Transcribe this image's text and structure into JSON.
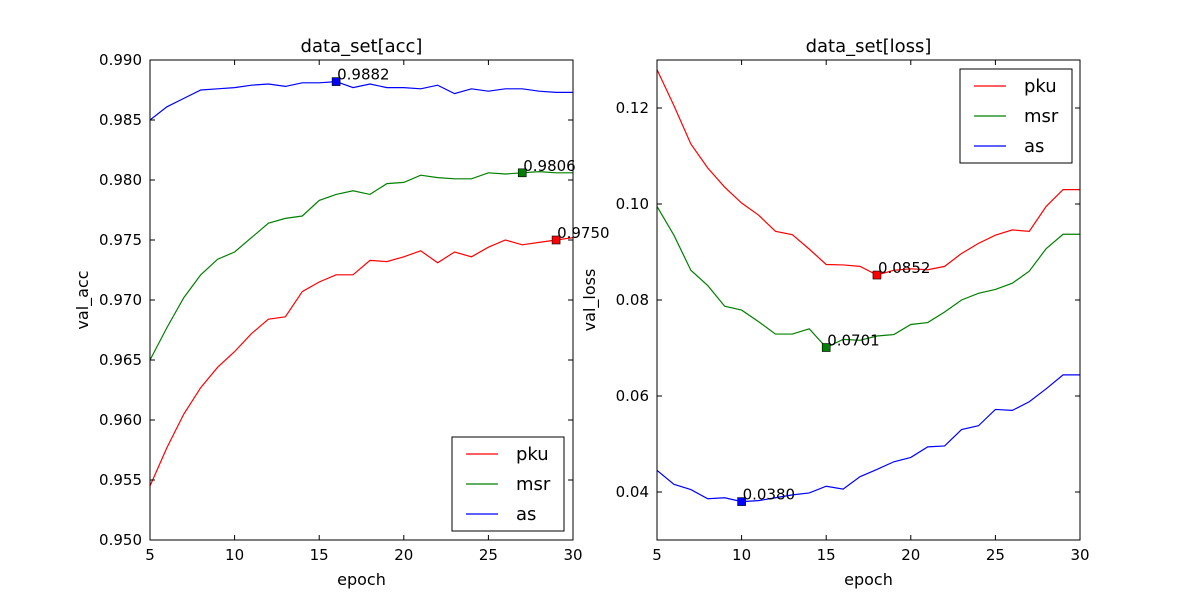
{
  "chart_data": [
    {
      "type": "line",
      "title": "data_set[acc]",
      "xlabel": "epoch",
      "ylabel": "val_acc",
      "xlim": [
        5,
        30
      ],
      "ylim": [
        0.95,
        0.99
      ],
      "xticks": [
        "5",
        "10",
        "15",
        "20",
        "25",
        "30"
      ],
      "yticks": [
        "0.950",
        "0.955",
        "0.960",
        "0.965",
        "0.970",
        "0.975",
        "0.980",
        "0.985",
        "0.990"
      ],
      "legend": "lower-right",
      "x": [
        5,
        6,
        7,
        8,
        9,
        10,
        11,
        12,
        13,
        14,
        15,
        16,
        17,
        18,
        19,
        20,
        21,
        22,
        23,
        24,
        25,
        26,
        27,
        28,
        29,
        30
      ],
      "series": [
        {
          "name": "pku",
          "color": "#ff0000",
          "values": [
            0.9545,
            0.9577,
            0.9605,
            0.9627,
            0.9644,
            0.9657,
            0.9672,
            0.9684,
            0.9686,
            0.9707,
            0.9715,
            0.9721,
            0.9721,
            0.9733,
            0.9732,
            0.9736,
            0.9741,
            0.9731,
            0.974,
            0.9736,
            0.9744,
            0.975,
            0.9746,
            0.9748,
            0.975,
            0.9752
          ],
          "marker": {
            "x": 29,
            "y": 0.975,
            "label": "0.9750"
          }
        },
        {
          "name": "msr",
          "color": "#008000",
          "values": [
            0.965,
            0.9677,
            0.9702,
            0.9721,
            0.9734,
            0.974,
            0.9752,
            0.9764,
            0.9768,
            0.977,
            0.9783,
            0.9788,
            0.9791,
            0.9788,
            0.9797,
            0.9798,
            0.9804,
            0.9802,
            0.9801,
            0.9801,
            0.9806,
            0.9805,
            0.9806,
            0.9807,
            0.9806,
            0.9806
          ],
          "marker": {
            "x": 27,
            "y": 0.9806,
            "label": "0.9806"
          }
        },
        {
          "name": "as",
          "color": "#0000ff",
          "values": [
            0.985,
            0.9861,
            0.9868,
            0.9875,
            0.9876,
            0.9877,
            0.9879,
            0.988,
            0.9878,
            0.9881,
            0.9881,
            0.9882,
            0.9877,
            0.988,
            0.9877,
            0.9877,
            0.9876,
            0.9879,
            0.9872,
            0.9876,
            0.9874,
            0.9876,
            0.9876,
            0.9874,
            0.9873,
            0.9873
          ],
          "marker": {
            "x": 16,
            "y": 0.9882,
            "label": "0.9882"
          }
        }
      ]
    },
    {
      "type": "line",
      "title": "data_set[loss]",
      "xlabel": "epoch",
      "ylabel": "val_loss",
      "xlim": [
        5,
        30
      ],
      "ylim": [
        0.03,
        0.13
      ],
      "xticks": [
        "5",
        "10",
        "15",
        "20",
        "25",
        "30"
      ],
      "yticks": [
        "0.04",
        "0.06",
        "0.08",
        "0.10",
        "0.12"
      ],
      "legend": "upper-right",
      "x": [
        5,
        6,
        7,
        8,
        9,
        10,
        11,
        12,
        13,
        14,
        15,
        16,
        17,
        18,
        19,
        20,
        21,
        22,
        23,
        24,
        25,
        26,
        27,
        28,
        29,
        30
      ],
      "series": [
        {
          "name": "pku",
          "color": "#ff0000",
          "values": [
            0.128,
            0.1205,
            0.1125,
            0.1075,
            0.1035,
            0.1002,
            0.0977,
            0.0943,
            0.0936,
            0.0906,
            0.0874,
            0.0873,
            0.087,
            0.0852,
            0.0862,
            0.0865,
            0.0863,
            0.087,
            0.0897,
            0.0918,
            0.0935,
            0.0946,
            0.0943,
            0.0995,
            0.103,
            0.103
          ],
          "marker": {
            "x": 18,
            "y": 0.0852,
            "label": "0.0852"
          }
        },
        {
          "name": "msr",
          "color": "#008000",
          "values": [
            0.0995,
            0.0935,
            0.0862,
            0.083,
            0.0787,
            0.0779,
            0.0755,
            0.0729,
            0.0729,
            0.074,
            0.0701,
            0.0718,
            0.0716,
            0.0725,
            0.0728,
            0.0749,
            0.0753,
            0.0775,
            0.08,
            0.0814,
            0.0822,
            0.0835,
            0.086,
            0.0907,
            0.0937,
            0.0937
          ],
          "marker": {
            "x": 15,
            "y": 0.0701,
            "label": "0.0701"
          }
        },
        {
          "name": "as",
          "color": "#0000ff",
          "values": [
            0.0445,
            0.0416,
            0.0405,
            0.0386,
            0.0388,
            0.038,
            0.0382,
            0.0388,
            0.0394,
            0.0398,
            0.0412,
            0.0406,
            0.0432,
            0.0447,
            0.0463,
            0.0472,
            0.0494,
            0.0496,
            0.053,
            0.0538,
            0.0572,
            0.057,
            0.0588,
            0.0615,
            0.0644,
            0.0644
          ],
          "marker": {
            "x": 10,
            "y": 0.038,
            "label": "0.0380"
          }
        }
      ]
    }
  ]
}
